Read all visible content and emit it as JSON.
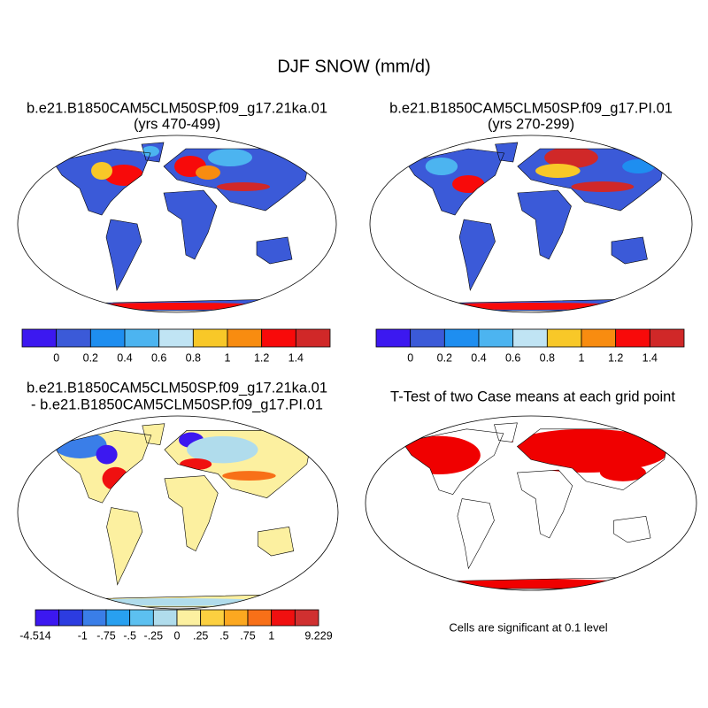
{
  "title": "DJF SNOW (mm/d)",
  "panels": [
    {
      "title": "b.e21.B1850CAM5CLM50SP.f09_g17.21ka.01",
      "subtitle": "(yrs 470-499)",
      "colorbar": {
        "colors": [
          "#3c18f0",
          "#3b5ad8",
          "#1e8ef0",
          "#4cb4f0",
          "#c0e4f4",
          "#f8c828",
          "#f88c10",
          "#f80a0a",
          "#d02828"
        ],
        "labels": [
          "0",
          "0.2",
          "0.4",
          "0.6",
          "0.8",
          "1",
          "1.2",
          "1.4"
        ]
      }
    },
    {
      "title": "b.e21.B1850CAM5CLM50SP.f09_g17.PI.01",
      "subtitle": "(yrs 270-299)",
      "colorbar": {
        "colors": [
          "#3c18f0",
          "#3b5ad8",
          "#1e8ef0",
          "#4cb4f0",
          "#c0e4f4",
          "#f8c828",
          "#f88c10",
          "#f80a0a",
          "#d02828"
        ],
        "labels": [
          "0",
          "0.2",
          "0.4",
          "0.6",
          "0.8",
          "1",
          "1.2",
          "1.4"
        ]
      }
    },
    {
      "title": "b.e21.B1850CAM5CLM50SP.f09_g17.21ka.01",
      "subtitle": "- b.e21.B1850CAM5CLM50SP.f09_g17.PI.01",
      "colorbar": {
        "colors": [
          "#3c18f0",
          "#2c3ce0",
          "#3a7ee8",
          "#28a0f0",
          "#5cc0f0",
          "#b0dcec",
          "#fcf0a0",
          "#fcd040",
          "#fca820",
          "#f87018",
          "#f01010",
          "#d03030"
        ],
        "labels": [
          "-4.514",
          "-1",
          "-.75",
          "-.5",
          "-.25",
          "0",
          ".25",
          ".5",
          ".75",
          "1",
          "9.229"
        ]
      }
    },
    {
      "title": "T-Test of two Case means at each grid point",
      "note": "Cells are significant at 0.1 level"
    }
  ]
}
